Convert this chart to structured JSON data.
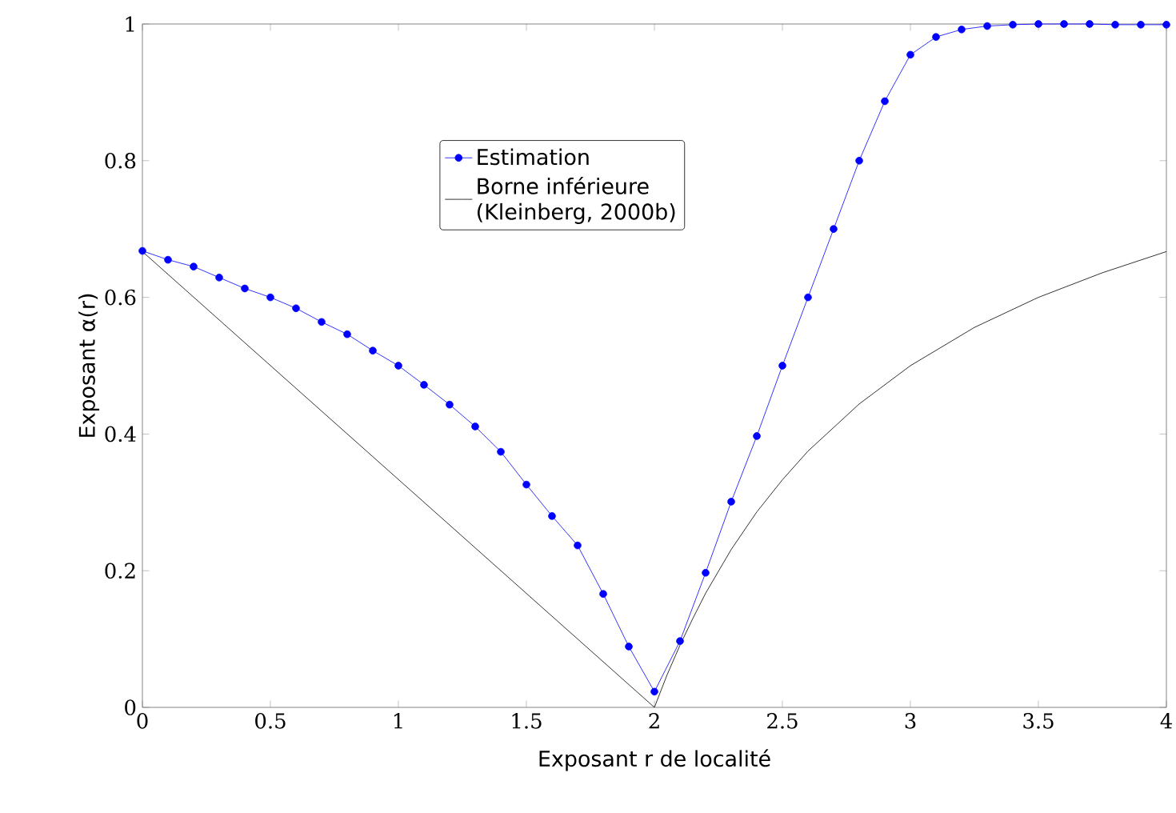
{
  "chart_data": {
    "type": "line",
    "xlabel": "Exposant r de localité",
    "ylabel": "Exposant α(r)",
    "xlim": [
      0,
      4
    ],
    "ylim": [
      0,
      1
    ],
    "xticks": [
      0,
      0.5,
      1,
      1.5,
      2,
      2.5,
      3,
      3.5,
      4
    ],
    "yticks": [
      0,
      0.2,
      0.4,
      0.6,
      0.8,
      1
    ],
    "legend": "top",
    "grid": false,
    "series": [
      {
        "name": "Estimation",
        "color": "#0000ff",
        "marker": "circle",
        "x": [
          0,
          0.1,
          0.2,
          0.3,
          0.4,
          0.5,
          0.6,
          0.7,
          0.8,
          0.9,
          1.0,
          1.1,
          1.2,
          1.3,
          1.4,
          1.5,
          1.6,
          1.7,
          1.8,
          1.9,
          2.0,
          2.1,
          2.2,
          2.3,
          2.4,
          2.5,
          2.6,
          2.7,
          2.8,
          2.9,
          3.0,
          3.1,
          3.2,
          3.3,
          3.4,
          3.5,
          3.6,
          3.7,
          3.8,
          3.9,
          4.0
        ],
        "values": [
          0.668,
          0.655,
          0.645,
          0.629,
          0.613,
          0.6,
          0.584,
          0.564,
          0.546,
          0.522,
          0.5,
          0.472,
          0.443,
          0.411,
          0.374,
          0.326,
          0.28,
          0.237,
          0.166,
          0.089,
          0.023,
          0.097,
          0.197,
          0.301,
          0.397,
          0.5,
          0.6,
          0.7,
          0.8,
          0.887,
          0.955,
          0.981,
          0.992,
          0.997,
          0.999,
          1.0,
          1.0,
          1.0,
          0.999,
          0.999,
          0.999
        ]
      },
      {
        "name": "Borne inférieure\n(Kleinberg, 2000b)",
        "color": "#000000",
        "marker": "none",
        "x": [
          0,
          2,
          2.05,
          2.1,
          2.15,
          2.2,
          2.3,
          2.4,
          2.5,
          2.6,
          2.8,
          3,
          3.25,
          3.5,
          3.75,
          4
        ],
        "values": [
          0.667,
          0,
          0.048,
          0.091,
          0.13,
          0.167,
          0.231,
          0.286,
          0.333,
          0.375,
          0.444,
          0.5,
          0.556,
          0.6,
          0.636,
          0.667
        ]
      }
    ]
  }
}
